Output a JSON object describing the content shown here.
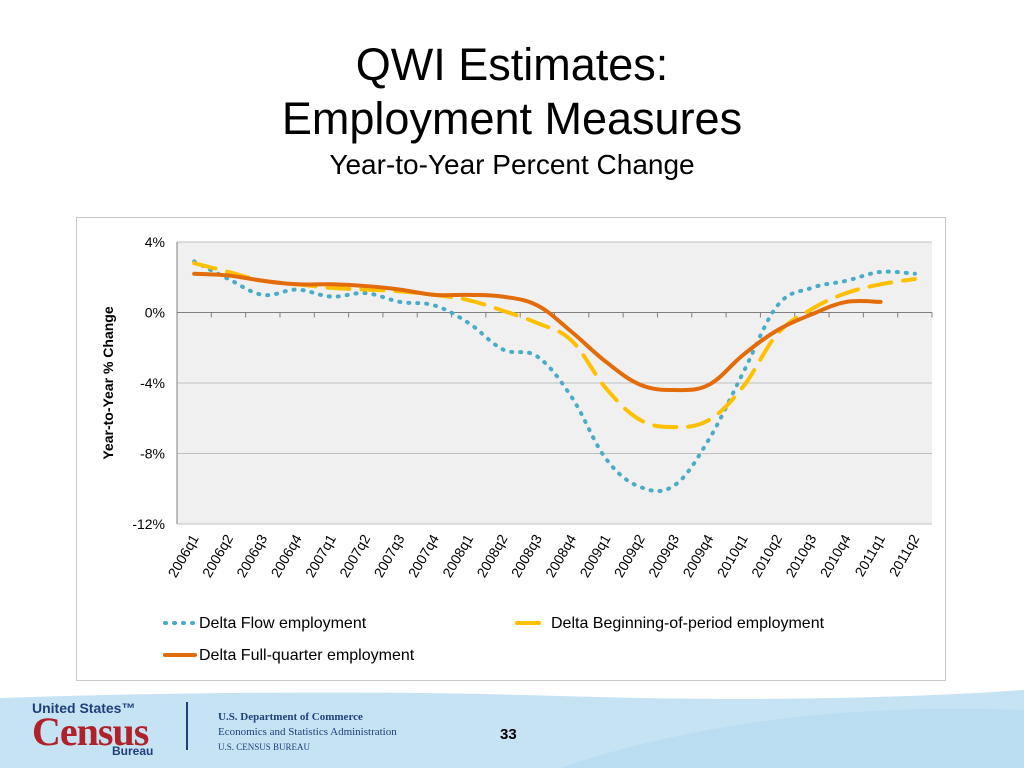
{
  "slide": {
    "title_line1": "QWI Estimates:",
    "title_line2": "Employment Measures",
    "subtitle": "Year-to-Year Percent Change",
    "page_number": "33"
  },
  "footer": {
    "logo_top": "United States™",
    "logo_main": "Census",
    "logo_bottom": "Bureau",
    "dept_line1": "U.S. Department of Commerce",
    "dept_line2": "Economics and Statistics Administration",
    "dept_line3": "U.S. CENSUS BUREAU"
  },
  "colors": {
    "flow": "#4bacc6",
    "beginning": "#ffc000",
    "fullquarter": "#e36c0a",
    "plot_bg": "#f0f0f0",
    "grid": "#bfbfbf",
    "footer_band": "#c6e3f4"
  },
  "chart_data": {
    "type": "line",
    "title": "",
    "xlabel": "",
    "ylabel": "Year-to-Year % Change",
    "ylim": [
      -12,
      4
    ],
    "yticks": [
      4,
      0,
      -4,
      -8,
      -12
    ],
    "ytick_labels": [
      "4%",
      "0%",
      "-4%",
      "-8%",
      "-12%"
    ],
    "grid": true,
    "legend_position": "bottom",
    "categories": [
      "2006q1",
      "2006q2",
      "2006q3",
      "2006q4",
      "2007q1",
      "2007q2",
      "2007q3",
      "2007q4",
      "2008q1",
      "2008q2",
      "2008q3",
      "2008q4",
      "2009q1",
      "2009q2",
      "2009q3",
      "2009q4",
      "2010q1",
      "2010q2",
      "2010q3",
      "2010q4",
      "2011q1",
      "2011q2"
    ],
    "series": [
      {
        "name": "Delta Flow employment",
        "style": "dotted",
        "color": "#4bacc6",
        "values": [
          2.9,
          1.9,
          1.0,
          1.3,
          0.9,
          1.1,
          0.6,
          0.4,
          -0.6,
          -2.1,
          -2.5,
          -4.8,
          -8.3,
          -9.9,
          -9.8,
          -7.2,
          -3.4,
          0.4,
          1.4,
          1.8,
          2.3,
          2.2
        ]
      },
      {
        "name": "Delta Beginning-of-period employment",
        "style": "dashed",
        "color": "#ffc000",
        "values": [
          2.8,
          2.3,
          1.8,
          1.6,
          1.4,
          1.3,
          1.2,
          1.0,
          0.7,
          0.1,
          -0.6,
          -1.6,
          -4.3,
          -6.1,
          -6.5,
          -6.1,
          -4.2,
          -1.2,
          0.2,
          1.1,
          1.6,
          1.9
        ]
      },
      {
        "name": "Delta Full-quarter employment",
        "style": "solid",
        "color": "#e36c0a",
        "values": [
          2.2,
          2.1,
          1.8,
          1.6,
          1.6,
          1.5,
          1.3,
          1.0,
          1.0,
          0.9,
          0.4,
          -1.1,
          -2.8,
          -4.1,
          -4.4,
          -4.1,
          -2.4,
          -1.0,
          -0.1,
          0.6,
          0.6,
          null
        ]
      }
    ]
  }
}
